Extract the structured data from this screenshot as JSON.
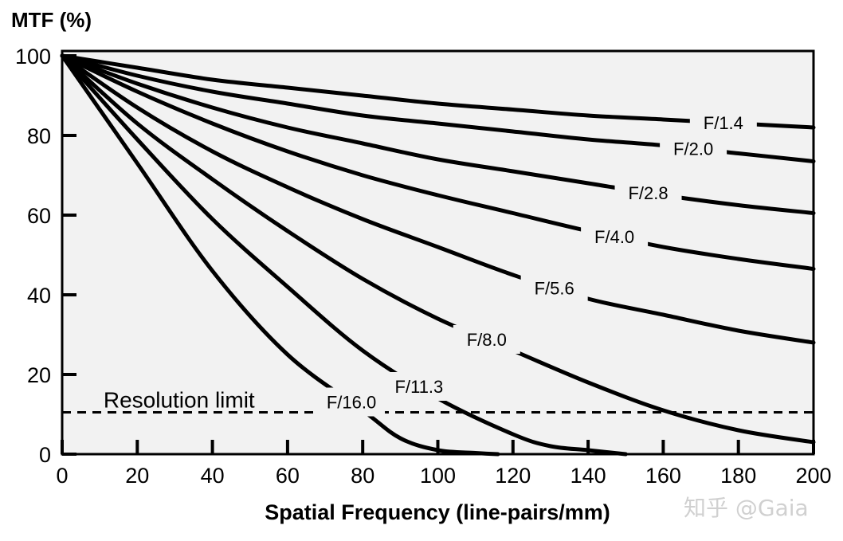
{
  "chart_data": {
    "type": "line",
    "title": "",
    "ylabel": "MTF (%)",
    "xlabel": "Spatial Frequency (line-pairs/mm)",
    "xlim": [
      0,
      200
    ],
    "ylim": [
      0,
      100
    ],
    "xticks": [
      0,
      20,
      40,
      60,
      80,
      100,
      120,
      140,
      160,
      180,
      200
    ],
    "yticks": [
      0,
      20,
      40,
      60,
      80,
      100
    ],
    "grid": false,
    "legend": "inline labels on curves",
    "background_color": "#f2f2f2",
    "line_color": "#000000",
    "series": [
      {
        "name": "F/1.4",
        "x": [
          0,
          20,
          40,
          60,
          80,
          100,
          120,
          140,
          160,
          180,
          200
        ],
        "y": [
          100,
          97,
          94,
          92,
          90,
          88,
          86.5,
          85,
          84,
          83,
          82
        ]
      },
      {
        "name": "F/2.0",
        "x": [
          0,
          20,
          40,
          60,
          80,
          100,
          120,
          140,
          160,
          180,
          200
        ],
        "y": [
          100,
          95,
          91,
          88,
          85,
          83,
          81,
          79,
          77.5,
          75.5,
          73.5
        ]
      },
      {
        "name": "F/2.8",
        "x": [
          0,
          20,
          40,
          60,
          80,
          100,
          120,
          140,
          160,
          180,
          200
        ],
        "y": [
          100,
          93,
          87,
          82,
          78,
          74,
          71,
          68,
          65,
          62.5,
          60.5
        ]
      },
      {
        "name": "F/4.0",
        "x": [
          0,
          20,
          40,
          60,
          80,
          100,
          120,
          140,
          160,
          180,
          200
        ],
        "y": [
          100,
          91,
          83,
          76,
          70,
          65,
          60.5,
          56,
          52,
          49,
          46.5
        ]
      },
      {
        "name": "F/5.6",
        "x": [
          0,
          20,
          40,
          60,
          80,
          100,
          120,
          140,
          160,
          180,
          200
        ],
        "y": [
          100,
          87,
          76,
          67,
          59,
          52,
          45,
          39,
          35,
          31,
          28
        ]
      },
      {
        "name": "F/8.0",
        "x": [
          0,
          20,
          40,
          60,
          80,
          100,
          120,
          140,
          160,
          180,
          200
        ],
        "y": [
          100,
          83,
          69,
          56,
          44,
          34,
          26,
          18,
          11,
          6,
          3
        ]
      },
      {
        "name": "F/11.3",
        "x": [
          0,
          20,
          40,
          60,
          80,
          100,
          120,
          130,
          140,
          150
        ],
        "y": [
          100,
          79,
          59,
          42,
          26,
          14,
          5,
          2,
          1,
          0
        ]
      },
      {
        "name": "F/16.0",
        "x": [
          0,
          20,
          40,
          60,
          80,
          90,
          100,
          110,
          116
        ],
        "y": [
          100,
          73,
          46,
          25,
          11,
          4,
          1,
          0.3,
          0
        ]
      }
    ],
    "reference_line": {
      "label": "Resolution limit",
      "y": 10.5,
      "style": "dashed"
    }
  },
  "watermark": "知乎 @Gaia"
}
